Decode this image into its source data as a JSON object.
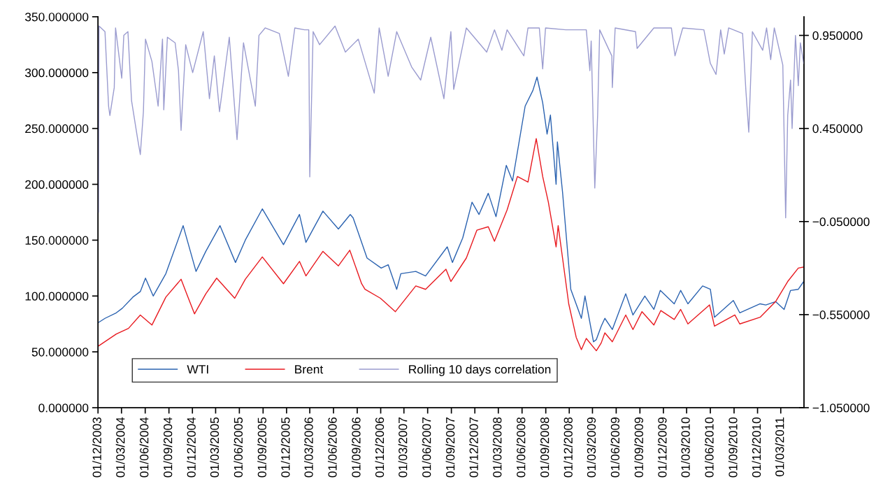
{
  "chart_data": {
    "type": "line",
    "xlim": [
      "2003-12-01",
      "2011-05-30"
    ],
    "xticks": [
      {
        "value": "2003-12-01",
        "label": "01/12/2003"
      },
      {
        "value": "2004-03-01",
        "label": "01/03/2004"
      },
      {
        "value": "2004-06-01",
        "label": "01/06/2004"
      },
      {
        "value": "2004-09-01",
        "label": "01/09/2004"
      },
      {
        "value": "2004-12-01",
        "label": "01/12/2004"
      },
      {
        "value": "2005-03-01",
        "label": "01/03/2005"
      },
      {
        "value": "2005-06-01",
        "label": "01/06/2005"
      },
      {
        "value": "2005-09-01",
        "label": "01/09/2005"
      },
      {
        "value": "2005-12-01",
        "label": "01/12/2005"
      },
      {
        "value": "2006-03-01",
        "label": "01/03/2006"
      },
      {
        "value": "2006-06-01",
        "label": "01/06/2006"
      },
      {
        "value": "2006-09-01",
        "label": "01/09/2006"
      },
      {
        "value": "2006-12-01",
        "label": "01/12/2006"
      },
      {
        "value": "2007-03-01",
        "label": "01/03/2007"
      },
      {
        "value": "2007-06-01",
        "label": "01/06/2007"
      },
      {
        "value": "2007-09-01",
        "label": "01/09/2007"
      },
      {
        "value": "2007-12-01",
        "label": "01/12/2007"
      },
      {
        "value": "2008-03-01",
        "label": "01/03/2008"
      },
      {
        "value": "2008-06-01",
        "label": "01/06/2008"
      },
      {
        "value": "2008-09-01",
        "label": "01/09/2008"
      },
      {
        "value": "2008-12-01",
        "label": "01/12/2008"
      },
      {
        "value": "2009-03-01",
        "label": "01/03/2009"
      },
      {
        "value": "2009-06-01",
        "label": "01/06/2009"
      },
      {
        "value": "2009-09-01",
        "label": "01/09/2009"
      },
      {
        "value": "2009-12-01",
        "label": "01/12/2009"
      },
      {
        "value": "2010-03-01",
        "label": "01/03/2010"
      },
      {
        "value": "2010-06-01",
        "label": "01/06/2010"
      },
      {
        "value": "2010-09-01",
        "label": "01/09/2010"
      },
      {
        "value": "2010-12-01",
        "label": "01/12/2010"
      },
      {
        "value": "2011-03-01",
        "label": "01/03/2011"
      }
    ],
    "ylim": [
      0,
      350
    ],
    "yticks": [
      {
        "value": 0,
        "label": "0.000000"
      },
      {
        "value": 50,
        "label": "50.000000"
      },
      {
        "value": 100,
        "label": "100.000000"
      },
      {
        "value": 150,
        "label": "150.000000"
      },
      {
        "value": 200,
        "label": "200.000000"
      },
      {
        "value": 250,
        "label": "250.000000"
      },
      {
        "value": 300,
        "label": "300.000000"
      },
      {
        "value": 350,
        "label": "350.000000"
      }
    ],
    "y2lim": [
      -1.05,
      1.05
    ],
    "y2ticks": [
      {
        "value": -1.05,
        "label": "−1.050000"
      },
      {
        "value": -0.55,
        "label": "−0.550000"
      },
      {
        "value": -0.05,
        "label": "−0.050000"
      },
      {
        "value": 0.45,
        "label": "0.450000"
      },
      {
        "value": 0.95,
        "label": "0.950000"
      }
    ],
    "grid": false,
    "legend": "bottom left",
    "series": [
      {
        "name": "WTI",
        "color": "#2a62b0",
        "x": [
          "2003-12-01",
          "2003-12-28",
          "2004-02-10",
          "2004-03-04",
          "2004-04-14",
          "2004-05-13",
          "2004-06-02",
          "2004-07-02",
          "2004-08-20",
          "2004-10-26",
          "2004-12-15",
          "2005-01-22",
          "2005-03-18",
          "2005-05-17",
          "2005-06-24",
          "2005-08-29",
          "2005-11-19",
          "2006-01-20",
          "2006-02-14",
          "2006-04-21",
          "2006-06-20",
          "2006-08-05",
          "2006-08-16",
          "2006-10-09",
          "2006-12-03",
          "2006-12-30",
          "2007-02-01",
          "2007-02-17",
          "2007-04-16",
          "2007-05-24",
          "2007-08-16",
          "2007-09-05",
          "2007-10-15",
          "2007-11-20",
          "2007-12-17",
          "2008-01-22",
          "2008-02-21",
          "2008-04-01",
          "2008-04-25",
          "2008-06-13",
          "2008-07-13",
          "2008-07-29",
          "2008-08-20",
          "2008-09-06",
          "2008-09-19",
          "2008-10-11",
          "2008-10-16",
          "2008-11-05",
          "2008-12-07",
          "2009-01-17",
          "2009-01-31",
          "2009-03-05",
          "2009-03-16",
          "2009-04-04",
          "2009-04-18",
          "2009-05-17",
          "2009-07-08",
          "2009-08-05",
          "2009-09-20",
          "2009-10-25",
          "2009-11-19",
          "2010-01-12",
          "2010-02-06",
          "2010-03-06",
          "2010-05-02",
          "2010-06-01",
          "2010-06-17",
          "2010-08-29",
          "2010-09-23",
          "2010-12-11",
          "2011-01-02",
          "2011-02-09",
          "2011-03-14",
          "2011-04-08",
          "2011-05-08",
          "2011-05-29"
        ],
        "values": [
          76,
          80,
          85,
          89,
          99,
          104,
          116,
          100,
          120,
          163,
          122,
          140,
          163,
          130,
          150,
          178,
          146,
          173,
          148,
          176,
          160,
          173,
          170,
          134,
          125,
          128,
          106,
          120,
          122,
          118,
          144,
          130,
          152,
          184,
          173,
          192,
          171,
          217,
          203,
          270,
          284,
          296,
          273,
          245,
          262,
          200,
          238,
          193,
          106,
          80,
          100,
          59,
          61,
          73,
          80,
          70,
          102,
          83,
          100,
          88,
          105,
          93,
          105,
          93,
          109,
          106,
          81,
          96,
          85,
          93,
          92,
          95,
          88,
          105,
          106,
          113
        ]
      },
      {
        "name": "Brent",
        "color": "#e8191f",
        "x": [
          "2003-12-01",
          "2004-02-10",
          "2004-03-28",
          "2004-05-13",
          "2004-06-27",
          "2004-08-20",
          "2004-10-18",
          "2004-11-12",
          "2004-12-09",
          "2005-01-22",
          "2005-03-05",
          "2005-05-14",
          "2005-06-24",
          "2005-08-29",
          "2005-11-19",
          "2006-01-20",
          "2006-02-14",
          "2006-04-21",
          "2006-06-20",
          "2006-08-03",
          "2006-09-18",
          "2006-10-01",
          "2006-11-30",
          "2007-01-27",
          "2007-04-16",
          "2007-05-24",
          "2007-08-11",
          "2007-08-30",
          "2007-10-29",
          "2007-12-09",
          "2008-01-22",
          "2008-02-15",
          "2008-04-04",
          "2008-05-14",
          "2008-06-24",
          "2008-07-26",
          "2008-08-20",
          "2008-09-11",
          "2008-10-11",
          "2008-10-19",
          "2008-11-05",
          "2008-11-29",
          "2008-12-28",
          "2009-01-17",
          "2009-02-05",
          "2009-03-16",
          "2009-04-04",
          "2009-04-18",
          "2009-05-17",
          "2009-07-08",
          "2009-08-05",
          "2009-09-09",
          "2009-10-25",
          "2009-11-21",
          "2010-01-12",
          "2010-02-06",
          "2010-03-06",
          "2010-05-29",
          "2010-06-17",
          "2010-09-04",
          "2010-09-23",
          "2010-12-11",
          "2011-02-09",
          "2011-03-28",
          "2011-05-08",
          "2011-05-29"
        ],
        "values": [
          55,
          66,
          71,
          83,
          74,
          99,
          115,
          100,
          84,
          102,
          116,
          98,
          115,
          135,
          111,
          131,
          118,
          140,
          127,
          141,
          111,
          106,
          98,
          86,
          109,
          106,
          124,
          113,
          134,
          159,
          162,
          149,
          177,
          207,
          202,
          241,
          207,
          184,
          144,
          163,
          134,
          93,
          63,
          52,
          62,
          51,
          58,
          67,
          59,
          83,
          70,
          86,
          74,
          87,
          79,
          88,
          75,
          92,
          73,
          83,
          75,
          81,
          95,
          113,
          125,
          126
        ]
      },
      {
        "name": "Rolling 10 days correlation",
        "color": "#9a9bcf",
        "axis": "y2",
        "x": [
          "2003-12-03",
          "2003-12-05",
          "2003-12-28",
          "2004-01-11",
          "2004-01-16",
          "2004-02-02",
          "2004-02-07",
          "2004-03-02",
          "2004-03-10",
          "2004-03-26",
          "2004-04-09",
          "2004-05-03",
          "2004-05-13",
          "2004-05-25",
          "2004-06-02",
          "2004-06-27",
          "2004-07-21",
          "2004-08-07",
          "2004-08-12",
          "2004-08-26",
          "2004-09-25",
          "2004-10-08",
          "2004-10-18",
          "2004-11-05",
          "2004-12-02",
          "2005-01-12",
          "2005-02-05",
          "2005-02-24",
          "2005-03-16",
          "2005-04-23",
          "2005-05-23",
          "2005-06-17",
          "2005-08-02",
          "2005-08-16",
          "2005-09-09",
          "2005-11-03",
          "2005-12-08",
          "2006-01-02",
          "2006-02-09",
          "2006-02-25",
          "2006-03-01",
          "2006-03-14",
          "2006-04-08",
          "2006-06-07",
          "2006-07-17",
          "2006-09-05",
          "2006-11-06",
          "2006-11-25",
          "2006-12-30",
          "2007-02-01",
          "2007-03-31",
          "2007-05-05",
          "2007-06-13",
          "2007-08-03",
          "2007-08-30",
          "2007-09-10",
          "2007-10-29",
          "2008-01-16",
          "2008-02-15",
          "2008-03-15",
          "2008-04-04",
          "2008-06-08",
          "2008-06-24",
          "2008-08-07",
          "2008-08-20",
          "2008-08-31",
          "2008-11-18",
          "2009-02-05",
          "2009-02-19",
          "2009-02-24",
          "2009-03-10",
          "2009-03-21",
          "2009-03-29",
          "2009-05-15",
          "2009-05-17",
          "2009-05-28",
          "2009-08-15",
          "2009-08-21",
          "2009-10-25",
          "2010-01-01",
          "2010-01-15",
          "2010-02-14",
          "2010-05-07",
          "2010-06-01",
          "2010-06-23",
          "2010-07-11",
          "2010-07-25",
          "2010-08-11",
          "2010-10-04",
          "2010-10-17",
          "2010-10-28",
          "2010-11-11",
          "2010-12-21",
          "2011-01-05",
          "2011-01-21",
          "2011-02-04",
          "2011-03-09",
          "2011-03-20",
          "2011-03-28",
          "2011-04-08",
          "2011-04-14",
          "2011-04-27",
          "2011-05-08",
          "2011-05-16",
          "2011-05-29"
        ],
        "values": [
          0.0,
          1.0,
          0.97,
          0.57,
          0.52,
          0.67,
          0.99,
          0.72,
          0.95,
          0.97,
          0.6,
          0.39,
          0.31,
          0.54,
          0.93,
          0.81,
          0.57,
          0.93,
          0.55,
          0.94,
          0.91,
          0.76,
          0.44,
          0.9,
          0.75,
          0.97,
          0.61,
          0.84,
          0.54,
          0.94,
          0.39,
          0.91,
          0.57,
          0.95,
          0.99,
          0.96,
          0.73,
          0.99,
          0.98,
          0.98,
          0.19,
          0.97,
          0.9,
          1.0,
          0.86,
          0.93,
          0.64,
          0.99,
          0.73,
          0.97,
          0.78,
          0.71,
          0.94,
          0.61,
          0.97,
          0.66,
          0.99,
          0.86,
          0.98,
          0.87,
          0.98,
          0.84,
          0.99,
          0.99,
          0.77,
          0.99,
          0.98,
          0.98,
          0.76,
          0.92,
          0.13,
          0.52,
          0.98,
          0.84,
          0.67,
          0.99,
          0.97,
          0.88,
          0.99,
          0.99,
          0.84,
          0.99,
          0.98,
          0.8,
          0.74,
          0.98,
          0.85,
          0.99,
          0.96,
          0.65,
          0.43,
          0.97,
          0.87,
          0.99,
          0.82,
          0.99,
          0.79,
          -0.03,
          0.52,
          0.71,
          0.45,
          0.95,
          0.68,
          0.91,
          0.8
        ]
      }
    ]
  }
}
